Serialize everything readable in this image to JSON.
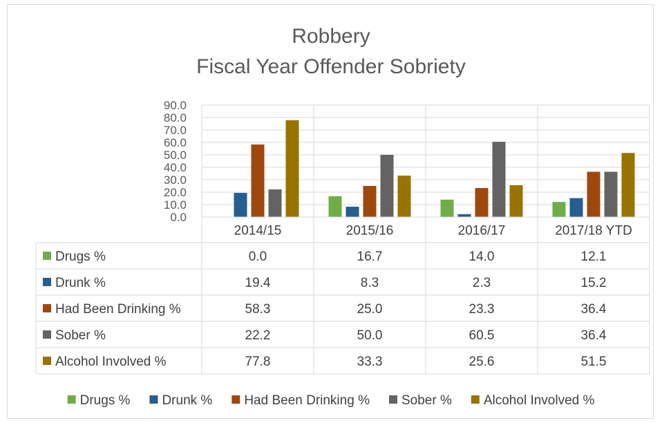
{
  "chart_data": {
    "type": "bar",
    "title": "Robbery",
    "subtitle": "Fiscal Year Offender Sobriety",
    "categories": [
      "2014/15",
      "2015/16",
      "2016/17",
      "2017/18 YTD"
    ],
    "ylim": [
      0,
      90
    ],
    "yticks": [
      0,
      10,
      20,
      30,
      40,
      50,
      60,
      70,
      80,
      90
    ],
    "ytick_labels": [
      "0.0",
      "10.0",
      "20.0",
      "30.0",
      "40.0",
      "50.0",
      "60.0",
      "70.0",
      "80.0",
      "90.0"
    ],
    "grid": true,
    "legend_position": "bottom",
    "series": [
      {
        "name": "Drugs %",
        "color": "#70ad47",
        "values": [
          0.0,
          16.7,
          14.0,
          12.1
        ],
        "labels": [
          "0.0",
          "16.7",
          "14.0",
          "12.1"
        ]
      },
      {
        "name": "Drunk %",
        "color": "#255e91",
        "values": [
          19.4,
          8.3,
          2.3,
          15.2
        ],
        "labels": [
          "19.4",
          "8.3",
          "2.3",
          "15.2"
        ]
      },
      {
        "name": "Had Been Drinking %",
        "color": "#9e480e",
        "values": [
          58.3,
          25.0,
          23.3,
          36.4
        ],
        "labels": [
          "58.3",
          "25.0",
          "23.3",
          "36.4"
        ]
      },
      {
        "name": "Sober %",
        "color": "#636363",
        "values": [
          22.2,
          50.0,
          60.5,
          36.4
        ],
        "labels": [
          "22.2",
          "50.0",
          "60.5",
          "36.4"
        ]
      },
      {
        "name": "Alcohol Involved %",
        "color": "#997300",
        "values": [
          77.8,
          33.3,
          25.6,
          51.5
        ],
        "labels": [
          "77.8",
          "33.3",
          "25.6",
          "51.5"
        ]
      }
    ]
  }
}
